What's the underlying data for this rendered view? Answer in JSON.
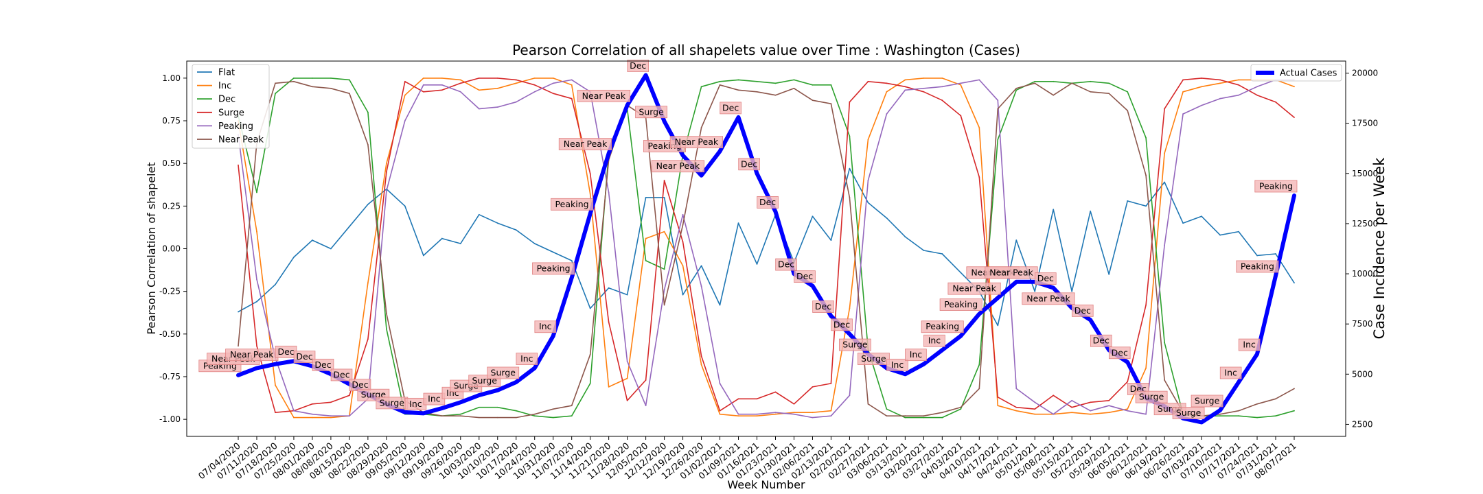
{
  "chart_data": {
    "type": "line",
    "title": "Pearson Correlation of all shapelets value over Time : Washington (Cases)",
    "xlabel": "Week Number",
    "ylabel": "Pearson Correlation of shapelet",
    "y2label": "Case Incidence per Week",
    "ylim": [
      -1.1,
      1.1
    ],
    "y2lim": [
      1900,
      20600
    ],
    "yticks": [
      "-1.00",
      "-0.75",
      "-0.50",
      "-0.25",
      "0.00",
      "0.25",
      "0.50",
      "0.75",
      "1.00"
    ],
    "y2ticks": [
      "2500",
      "5000",
      "7500",
      "10000",
      "12500",
      "15000",
      "17500",
      "20000"
    ],
    "categories": [
      "07/04/2020",
      "07/11/2020",
      "07/18/2020",
      "07/25/2020",
      "08/01/2020",
      "08/08/2020",
      "08/15/2020",
      "08/22/2020",
      "08/29/2020",
      "09/05/2020",
      "09/12/2020",
      "09/19/2020",
      "09/26/2020",
      "10/03/2020",
      "10/10/2020",
      "10/17/2020",
      "10/24/2020",
      "10/31/2020",
      "11/07/2020",
      "11/14/2020",
      "11/21/2020",
      "11/28/2020",
      "12/05/2020",
      "12/12/2020",
      "12/19/2020",
      "12/26/2020",
      "01/02/2021",
      "01/09/2021",
      "01/16/2021",
      "01/23/2021",
      "01/30/2021",
      "02/06/2021",
      "02/13/2021",
      "02/20/2021",
      "02/27/2021",
      "03/06/2021",
      "03/13/2021",
      "03/20/2021",
      "03/27/2021",
      "04/03/2021",
      "04/10/2021",
      "04/17/2021",
      "04/24/2021",
      "05/01/2021",
      "05/08/2021",
      "05/15/2021",
      "05/22/2021",
      "05/29/2021",
      "06/05/2021",
      "06/12/2021",
      "06/19/2021",
      "06/26/2021",
      "07/03/2021",
      "07/10/2021",
      "07/17/2021",
      "07/24/2021",
      "07/31/2021",
      "08/07/2021"
    ],
    "series": [
      {
        "name": "Flat",
        "color": "#1f77b4",
        "values": [
          -0.37,
          -0.31,
          -0.21,
          -0.05,
          0.05,
          0.0,
          0.13,
          0.26,
          0.35,
          0.25,
          -0.04,
          0.06,
          0.03,
          0.2,
          0.15,
          0.11,
          0.03,
          -0.02,
          -0.07,
          -0.35,
          -0.23,
          -0.27,
          0.3,
          0.3,
          -0.27,
          -0.1,
          -0.33,
          0.15,
          -0.09,
          0.2,
          -0.08,
          0.19,
          0.05,
          0.47,
          0.27,
          0.18,
          0.07,
          -0.01,
          -0.03,
          -0.14,
          -0.25,
          -0.45,
          0.05,
          -0.25,
          0.23,
          -0.25,
          0.22,
          -0.15,
          0.28,
          0.25,
          0.39,
          0.15,
          0.19,
          0.08,
          0.1,
          -0.04,
          -0.03,
          -0.2
        ]
      },
      {
        "name": "Inc",
        "color": "#ff7f0e",
        "values": [
          0.75,
          0.1,
          -0.8,
          -0.99,
          -0.99,
          -0.99,
          -0.98,
          -0.2,
          0.5,
          0.9,
          1.0,
          1.0,
          0.99,
          0.93,
          0.94,
          0.97,
          1.0,
          1.0,
          0.96,
          0.32,
          -0.81,
          -0.76,
          0.06,
          0.1,
          -0.1,
          -0.68,
          -0.97,
          -0.98,
          -0.98,
          -0.97,
          -0.96,
          -0.96,
          -0.95,
          -0.35,
          0.64,
          0.92,
          0.99,
          1.0,
          1.0,
          0.96,
          0.71,
          -0.92,
          -0.95,
          -0.97,
          -0.97,
          -0.96,
          -0.97,
          -0.96,
          -0.94,
          -0.7,
          0.56,
          0.92,
          0.95,
          0.97,
          0.99,
          0.99,
          0.99,
          0.95
        ]
      },
      {
        "name": "Dec",
        "color": "#2ca02c",
        "values": [
          0.78,
          0.33,
          0.91,
          1.0,
          1.0,
          1.0,
          0.99,
          0.8,
          -0.47,
          -0.97,
          -0.97,
          -0.98,
          -0.97,
          -0.93,
          -0.93,
          -0.95,
          -0.98,
          -0.99,
          -0.98,
          -0.79,
          0.56,
          0.82,
          -0.07,
          -0.12,
          0.55,
          0.95,
          0.98,
          0.99,
          0.98,
          0.97,
          0.99,
          0.96,
          0.96,
          0.66,
          -0.59,
          -0.94,
          -0.99,
          -0.99,
          -0.99,
          -0.94,
          -0.68,
          0.64,
          0.93,
          0.98,
          0.98,
          0.97,
          0.98,
          0.97,
          0.92,
          0.65,
          -0.55,
          -0.97,
          -0.98,
          -0.98,
          -0.98,
          -0.99,
          -0.98,
          -0.95
        ]
      },
      {
        "name": "Surge",
        "color": "#d62728",
        "values": [
          0.49,
          -0.57,
          -0.96,
          -0.95,
          -0.91,
          -0.9,
          -0.86,
          -0.53,
          0.45,
          0.98,
          0.92,
          0.93,
          0.97,
          1.0,
          1.0,
          0.99,
          0.96,
          0.91,
          0.88,
          0.44,
          -0.43,
          -0.89,
          -0.77,
          0.4,
          0.04,
          -0.63,
          -0.95,
          -0.88,
          -0.88,
          -0.84,
          -0.91,
          -0.81,
          -0.79,
          0.86,
          0.98,
          0.97,
          0.95,
          0.92,
          0.87,
          0.78,
          0.42,
          -0.87,
          -0.93,
          -0.94,
          -0.86,
          -0.93,
          -0.9,
          -0.89,
          -0.78,
          -0.33,
          0.82,
          0.99,
          1.0,
          0.99,
          0.96,
          0.9,
          0.86,
          0.77
        ]
      },
      {
        "name": "Peaking",
        "color": "#9467bd",
        "values": [
          0.67,
          -0.18,
          -0.64,
          -0.95,
          -0.97,
          -0.98,
          -0.98,
          -0.88,
          0.34,
          0.75,
          0.96,
          0.96,
          0.92,
          0.82,
          0.83,
          0.86,
          0.92,
          0.97,
          0.99,
          0.92,
          0.33,
          -0.66,
          -0.92,
          -0.24,
          0.2,
          -0.22,
          -0.79,
          -0.97,
          -0.97,
          -0.96,
          -0.97,
          -0.99,
          -0.98,
          -0.86,
          0.4,
          0.79,
          0.93,
          0.94,
          0.95,
          0.97,
          0.99,
          0.87,
          -0.82,
          -0.9,
          -0.97,
          -0.89,
          -0.95,
          -0.92,
          -0.95,
          -0.97,
          0.02,
          0.79,
          0.84,
          0.88,
          0.9,
          0.95,
          0.99,
          0.99
        ]
      },
      {
        "name": "Near Peak",
        "color": "#8c564b",
        "values": [
          -0.57,
          0.62,
          0.97,
          0.98,
          0.95,
          0.94,
          0.91,
          0.61,
          -0.38,
          -0.89,
          -0.96,
          -0.98,
          -0.98,
          -0.99,
          -0.99,
          -0.99,
          -0.97,
          -0.94,
          -0.92,
          -0.62,
          0.52,
          0.84,
          0.77,
          -0.33,
          0.14,
          0.71,
          0.96,
          0.93,
          0.92,
          0.9,
          0.94,
          0.87,
          0.85,
          0.3,
          -0.91,
          -0.98,
          -0.98,
          -0.98,
          -0.96,
          -0.93,
          -0.82,
          0.82,
          0.94,
          0.97,
          0.9,
          0.97,
          0.92,
          0.91,
          0.81,
          0.43,
          -0.77,
          -0.96,
          -0.98,
          -0.97,
          -0.95,
          -0.91,
          -0.88,
          -0.82
        ]
      }
    ],
    "cases": {
      "name": "Actual Cases",
      "color": "#0000ff",
      "values": [
        4950,
        5300,
        5500,
        5650,
        5400,
        5000,
        4500,
        4000,
        3500,
        3100,
        3050,
        3300,
        3600,
        3950,
        4200,
        4600,
        5300,
        6900,
        9800,
        13000,
        16000,
        18400,
        19900,
        17600,
        15900,
        14900,
        16100,
        17800,
        15000,
        13100,
        10000,
        9400,
        7900,
        7000,
        6000,
        5300,
        5000,
        5500,
        6200,
        6900,
        8000,
        8800,
        9600,
        9600,
        9300,
        8300,
        7700,
        6200,
        5600,
        3800,
        3400,
        2800,
        2600,
        3200,
        4600,
        6000,
        9900,
        13900
      ]
    },
    "annotations": [
      "Peaking",
      "Near Peak",
      "Near Peak",
      "Dec",
      "Dec",
      "Dec",
      "Dec",
      "Dec",
      "Surge",
      "Surge",
      "Inc",
      "Inc",
      "Inc",
      "Surge",
      "Surge",
      "Surge",
      "Inc",
      "Inc",
      "Peaking",
      "Peaking",
      "Near Peak",
      "Near Peak",
      "Dec",
      "Surge",
      "Peaking",
      "Near Peak",
      "Near Peak",
      "Dec",
      "Dec",
      "Dec",
      "Dec",
      "Dec",
      "Dec",
      "Dec",
      "Surge",
      "Surge",
      "Inc",
      "Inc",
      "Inc",
      "Peaking",
      "Peaking",
      "Near Peak",
      "Near Peak",
      "Near Peak",
      "Dec",
      "Near Peak",
      "Dec",
      "Dec",
      "Dec",
      "Dec",
      "Surge",
      "Surge",
      "Surge",
      "Surge",
      "Inc",
      "Inc",
      "Peaking",
      "Peaking"
    ],
    "legend_left": {
      "placement": "top-left",
      "entries": [
        "Flat",
        "Inc",
        "Dec",
        "Surge",
        "Peaking",
        "Near Peak"
      ]
    },
    "legend_right": {
      "placement": "top-right",
      "entries": [
        "Actual Cases"
      ]
    },
    "grid": false,
    "annotation_style": {
      "fill": "#f4b6b6",
      "stroke": "#e08080"
    }
  }
}
